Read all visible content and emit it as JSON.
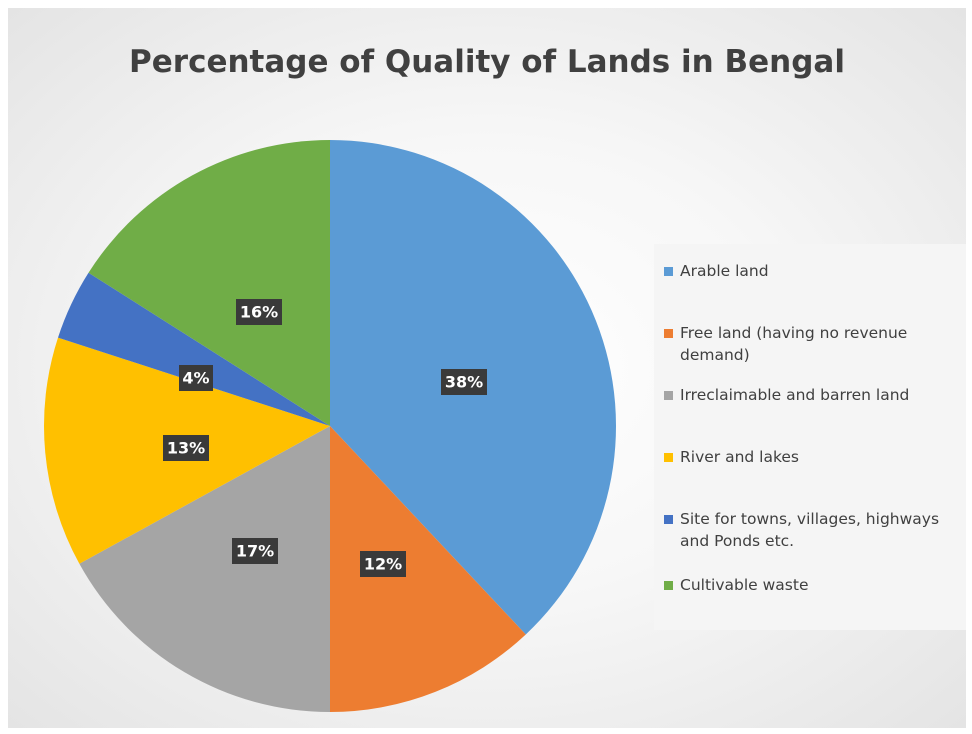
{
  "chart_data": {
    "type": "pie",
    "title": "Percentage of Quality of Lands in Bengal",
    "legend_position": "right",
    "slices": [
      {
        "label": "Arable land",
        "value": 38,
        "display": "38%",
        "color": "#5b9bd5"
      },
      {
        "label": "Free land (having no revenue demand)",
        "value": 12,
        "display": "12%",
        "color": "#ed7d31"
      },
      {
        "label": "Irreclaimable and barren land",
        "value": 17,
        "display": "17%",
        "color": "#a5a5a5"
      },
      {
        "label": "River and lakes",
        "value": 13,
        "display": "13%",
        "color": "#ffc000"
      },
      {
        "label": "Site for towns, villages, highways and Ponds etc.",
        "value": 4,
        "display": "4%",
        "color": "#4472c4"
      },
      {
        "label": "Cultivable waste",
        "value": 16,
        "display": "16%",
        "color": "#70ad47"
      }
    ]
  }
}
